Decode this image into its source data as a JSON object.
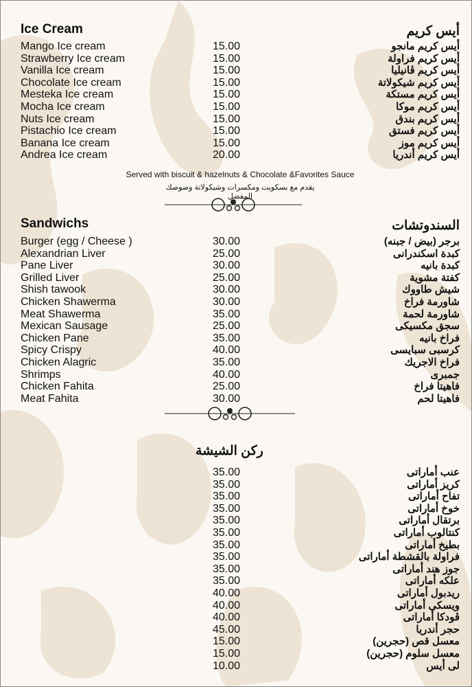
{
  "ice_cream": {
    "title_en": "Ice Cream",
    "title_ar": "أيس كريم",
    "items": [
      {
        "en": "Mango Ice cream",
        "price": "15.00",
        "ar": "أيس كريم مانجو"
      },
      {
        "en": "Strawberry Ice cream",
        "price": "15.00",
        "ar": "أيس كريم فراولة"
      },
      {
        "en": "Vanilla Ice cream",
        "price": "15.00",
        "ar": "أيس كريم ڤانيليا"
      },
      {
        "en": "Chocolate Ice cream",
        "price": "15.00",
        "ar": "أيس كريم شيكولاتة"
      },
      {
        "en": "Mesteka Ice cream",
        "price": "15.00",
        "ar": "أيس كريم مستكة"
      },
      {
        "en": "Mocha Ice cream",
        "price": "15.00",
        "ar": "أيس كريم موكا"
      },
      {
        "en": "Nuts Ice cream",
        "price": "15.00",
        "ar": "أيس كريم بندق"
      },
      {
        "en": "Pistachio Ice cream",
        "price": "15.00",
        "ar": "أيس كريم فستق"
      },
      {
        "en": "Banana Ice cream",
        "price": "15.00",
        "ar": "أيس كريم موز"
      },
      {
        "en": "Andrea Ice cream",
        "price": "20.00",
        "ar": "أيس كريم أندريا"
      }
    ],
    "note_en": "Served with biscuit & hazelnuts & Chocolate &Favorites Sauce",
    "note_ar": "يقدم مع بسكويت ومكسرات وشيكولاتة وصوصك المفضل"
  },
  "sandwiches": {
    "title_en": "Sandwichs",
    "title_ar": "السندوتشات",
    "items": [
      {
        "en": "Burger (egg / Cheese )",
        "price": "30.00",
        "ar": "برجر (بيض / جبنه)"
      },
      {
        "en": "Alexandrian Liver",
        "price": "25.00",
        "ar": "كبدة اسكندرانى"
      },
      {
        "en": "Pane Liver",
        "price": "30.00",
        "ar": "كبدة بانيه"
      },
      {
        "en": "Grilled Liver",
        "price": "25.00",
        "ar": "كفتة مشوية"
      },
      {
        "en": "Shish tawook",
        "price": "30.00",
        "ar": "شيش طاووك"
      },
      {
        "en": "Chicken Shawerma",
        "price": "30.00",
        "ar": "شاورمة فراخ"
      },
      {
        "en": "Meat Shawerma",
        "price": "35.00",
        "ar": "شاورمة لحمة"
      },
      {
        "en": "Mexican Sausage",
        "price": "25.00",
        "ar": "سجق مكسيكى"
      },
      {
        "en": "Chicken Pane",
        "price": "35.00",
        "ar": "فراخ بانيه"
      },
      {
        "en": "Spicy Crispy",
        "price": "40.00",
        "ar": "كرسبى سبايسى"
      },
      {
        "en": "Chicken Alagric",
        "price": "35.00",
        "ar": "فراخ الاجريك"
      },
      {
        "en": "Shrimps",
        "price": "40.00",
        "ar": "جمبرى"
      },
      {
        "en": "Chicken Fahita",
        "price": "25.00",
        "ar": "فاهيتا فراخ"
      },
      {
        "en": "Meat Fahita",
        "price": "30.00",
        "ar": "فاهيتا لحم"
      }
    ]
  },
  "shisha": {
    "title_ar": "ركن الشيشة",
    "items": [
      {
        "price": "35.00",
        "ar": "عنب أماراتى"
      },
      {
        "price": "35.00",
        "ar": "كريز أماراتى"
      },
      {
        "price": "35.00",
        "ar": "تفاح أماراتى"
      },
      {
        "price": "35.00",
        "ar": "خوخ أماراتى"
      },
      {
        "price": "35.00",
        "ar": "برتقال أماراتى"
      },
      {
        "price": "35.00",
        "ar": "كنتالوب أماراتى"
      },
      {
        "price": "35.00",
        "ar": "بطيخ أماراتى"
      },
      {
        "price": "35.00",
        "ar": "فراولة بالقشطة أماراتى"
      },
      {
        "price": "35.00",
        "ar": "جوز هند أماراتى"
      },
      {
        "price": "35.00",
        "ar": "علكه أماراتى"
      },
      {
        "price": "40.00",
        "ar": "ريدبول أماراتى"
      },
      {
        "price": "40.00",
        "ar": "ويسكى أماراتى"
      },
      {
        "price": "40.00",
        "ar": "ڤودكا أماراتى"
      },
      {
        "price": "45.00",
        "ar": "حجر أندريا"
      },
      {
        "price": "15.00",
        "ar": "معسل قص (حجرين)"
      },
      {
        "price": "15.00",
        "ar": "معسل سلوم (حجرين)"
      },
      {
        "price": "10.00",
        "ar": "لى أيس"
      }
    ]
  },
  "colors": {
    "background": "#fbf8f3",
    "damask": "#e8dccb",
    "text": "#111111"
  }
}
